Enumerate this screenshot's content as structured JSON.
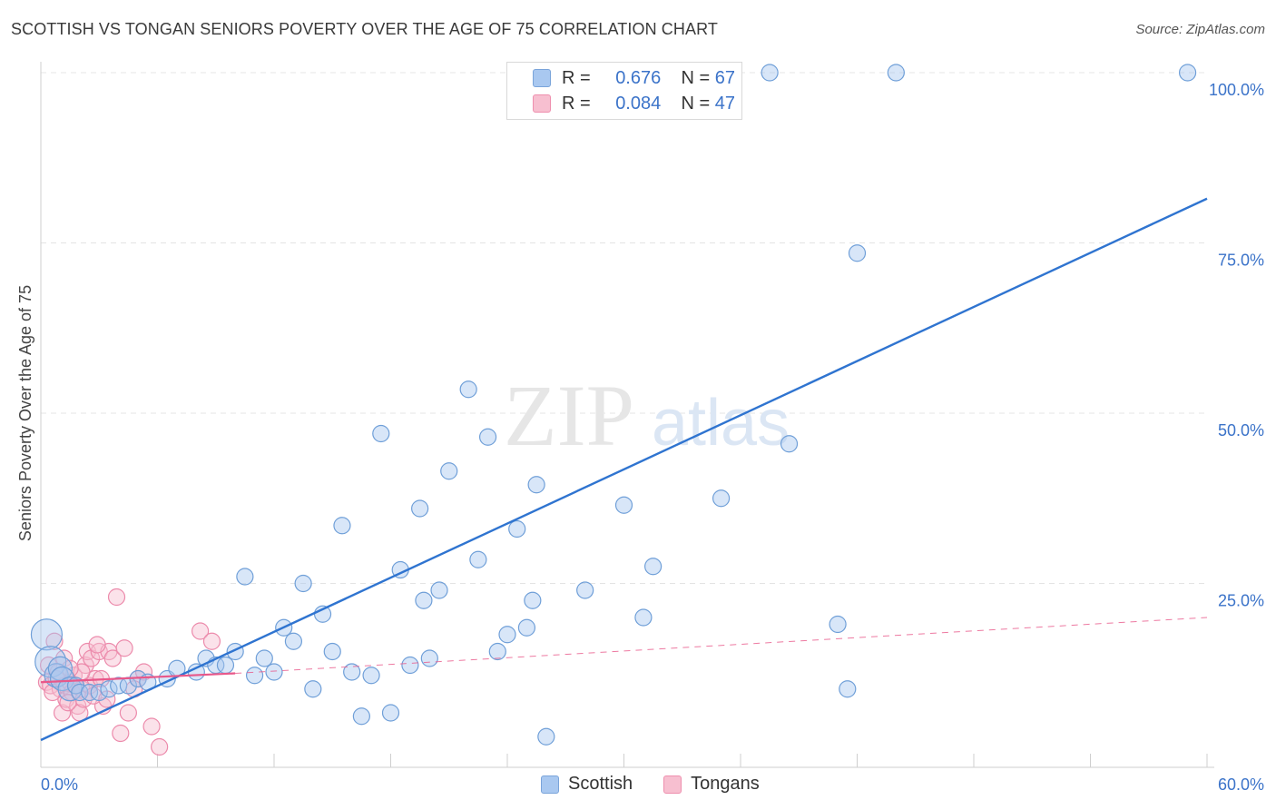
{
  "title": "SCOTTISH VS TONGAN SENIORS POVERTY OVER THE AGE OF 75 CORRELATION CHART",
  "source": "Source: ZipAtlas.com",
  "watermark": {
    "zip": "ZIP",
    "atlas": "atlas"
  },
  "legend": {
    "rows": [
      {
        "r_label": "R =",
        "r_value": "0.676",
        "n_label": "N =",
        "n_value": "67",
        "color": "#a9c8f0",
        "border": "#7aa4da"
      },
      {
        "r_label": "R =",
        "r_value": "0.084",
        "n_label": "N =",
        "n_value": "47",
        "color": "#f7bfd0",
        "border": "#ee8fae"
      }
    ]
  },
  "bottom_legend": [
    {
      "label": "Scottish",
      "color": "#a9c8f0"
    },
    {
      "label": "Tongans",
      "color": "#f7bfd0"
    }
  ],
  "chart_data": {
    "type": "scatter",
    "title": "SCOTTISH VS TONGAN SENIORS POVERTY OVER THE AGE OF 75 CORRELATION CHART",
    "xlabel": "",
    "ylabel": "Seniors Poverty Over the Age of 75",
    "xlim": [
      0,
      60
    ],
    "ylim": [
      0,
      100
    ],
    "x_tick_labels": [
      "0.0%",
      "60.0%"
    ],
    "y_tick_labels": [
      {
        "value": 25,
        "label": "25.0%"
      },
      {
        "value": 50,
        "label": "50.0%"
      },
      {
        "value": 75,
        "label": "75.0%"
      },
      {
        "value": 100,
        "label": "100.0%"
      }
    ],
    "series": [
      {
        "name": "Scottish",
        "color": "#a9c8f0",
        "stroke": "#6f9fd8",
        "trend": {
          "x": [
            0,
            60
          ],
          "y": [
            2,
            81.5
          ],
          "color": "#2f74d0"
        },
        "points": [
          [
            0.3,
            17.5,
            3
          ],
          [
            0.5,
            13.5,
            3
          ],
          [
            0.8,
            11.5,
            2
          ],
          [
            1.0,
            12.5,
            2
          ],
          [
            1.1,
            11,
            2
          ],
          [
            1.5,
            9.5,
            2
          ],
          [
            1.8,
            10,
            1
          ],
          [
            2,
            9,
            1
          ],
          [
            2.5,
            9,
            1
          ],
          [
            3,
            9,
            1
          ],
          [
            3.5,
            9.5,
            1
          ],
          [
            4,
            10,
            1
          ],
          [
            4.5,
            10,
            1
          ],
          [
            5,
            11,
            1
          ],
          [
            5.5,
            10.5,
            1
          ],
          [
            6.5,
            11,
            1
          ],
          [
            7,
            12.5,
            1
          ],
          [
            8,
            12,
            1
          ],
          [
            8.5,
            14,
            1
          ],
          [
            9,
            13,
            1
          ],
          [
            9.5,
            13,
            1
          ],
          [
            10,
            15,
            1
          ],
          [
            11,
            11.5,
            1
          ],
          [
            11.5,
            14,
            1
          ],
          [
            12,
            12,
            1
          ],
          [
            13,
            16.5,
            1
          ],
          [
            12.5,
            18.5,
            1
          ],
          [
            10.5,
            26,
            1
          ],
          [
            13.5,
            25,
            1
          ],
          [
            14.5,
            20.5,
            1
          ],
          [
            14,
            9.5,
            1
          ],
          [
            15,
            15,
            1
          ],
          [
            15.5,
            33.5,
            1
          ],
          [
            16,
            12,
            1
          ],
          [
            16.5,
            5.5,
            1
          ],
          [
            17,
            11.5,
            1
          ],
          [
            17.5,
            47,
            1
          ],
          [
            18,
            6,
            1
          ],
          [
            18.5,
            27,
            1
          ],
          [
            19,
            13,
            1
          ],
          [
            19.5,
            36,
            1
          ],
          [
            19.7,
            22.5,
            1
          ],
          [
            20,
            14,
            1
          ],
          [
            20.5,
            24,
            1
          ],
          [
            21,
            41.5,
            1
          ],
          [
            22,
            53.5,
            1
          ],
          [
            22.5,
            28.5,
            1
          ],
          [
            23,
            46.5,
            1
          ],
          [
            23.5,
            15,
            1
          ],
          [
            24,
            17.5,
            1
          ],
          [
            24.5,
            33,
            1
          ],
          [
            25,
            18.5,
            1
          ],
          [
            25.3,
            22.5,
            1
          ],
          [
            25.5,
            39.5,
            1
          ],
          [
            26,
            2.5,
            1
          ],
          [
            28,
            24,
            1
          ],
          [
            30,
            36.5,
            1
          ],
          [
            31,
            20,
            1
          ],
          [
            31.5,
            27.5,
            1
          ],
          [
            35,
            37.5,
            1
          ],
          [
            37.5,
            100,
            1
          ],
          [
            38.5,
            45.5,
            1
          ],
          [
            41,
            19,
            1
          ],
          [
            42,
            73.5,
            1
          ],
          [
            41.5,
            9.5,
            1
          ],
          [
            44,
            100,
            1
          ],
          [
            59,
            100,
            1
          ]
        ]
      },
      {
        "name": "Tongans",
        "color": "#f7bfd0",
        "stroke": "#ec8aab",
        "trend": {
          "x": [
            0,
            10
          ],
          "y": [
            10.5,
            11.8
          ],
          "dash_x": [
            10,
            60
          ],
          "dash_y": [
            11.8,
            20
          ],
          "color": "#e8588a"
        },
        "points": [
          [
            0.3,
            10.5,
            1
          ],
          [
            0.4,
            13,
            1
          ],
          [
            0.5,
            10,
            1
          ],
          [
            0.7,
            16.5,
            1
          ],
          [
            0.8,
            11,
            1
          ],
          [
            1,
            9.5,
            1
          ],
          [
            1.1,
            6,
            1
          ],
          [
            1.2,
            10,
            1
          ],
          [
            1.3,
            8,
            1
          ],
          [
            1.5,
            10.5,
            1
          ],
          [
            1.6,
            9,
            1
          ],
          [
            1.7,
            11.5,
            1
          ],
          [
            1.9,
            7,
            1
          ],
          [
            2,
            6,
            1
          ],
          [
            2.1,
            9.5,
            1
          ],
          [
            2.2,
            8,
            1
          ],
          [
            2.3,
            13,
            1
          ],
          [
            2.4,
            15,
            1
          ],
          [
            2.5,
            10,
            1
          ],
          [
            2.6,
            14,
            1
          ],
          [
            2.8,
            11,
            1
          ],
          [
            3,
            15,
            1
          ],
          [
            3.2,
            7,
            1
          ],
          [
            3.5,
            15,
            1
          ],
          [
            3.7,
            14,
            1
          ],
          [
            3.9,
            23,
            1
          ],
          [
            4.1,
            3,
            1
          ],
          [
            4.3,
            15.5,
            1
          ],
          [
            4.5,
            6,
            1
          ],
          [
            5,
            11,
            1
          ],
          [
            5.3,
            12,
            1
          ],
          [
            5.7,
            4,
            1
          ],
          [
            6.1,
            1,
            1
          ],
          [
            8.2,
            18,
            1
          ],
          [
            8.8,
            16.5,
            1
          ],
          [
            1.4,
            7.5,
            1
          ],
          [
            1.8,
            10,
            1
          ],
          [
            2.7,
            8.5,
            1
          ],
          [
            0.9,
            12,
            1
          ],
          [
            1.2,
            14,
            1
          ],
          [
            2.1,
            12,
            1
          ],
          [
            3.1,
            11,
            1
          ],
          [
            4.8,
            9.5,
            1
          ],
          [
            0.6,
            9,
            1
          ],
          [
            1.5,
            12.5,
            1
          ],
          [
            2.9,
            16,
            1
          ],
          [
            3.4,
            8,
            1
          ]
        ]
      }
    ]
  }
}
